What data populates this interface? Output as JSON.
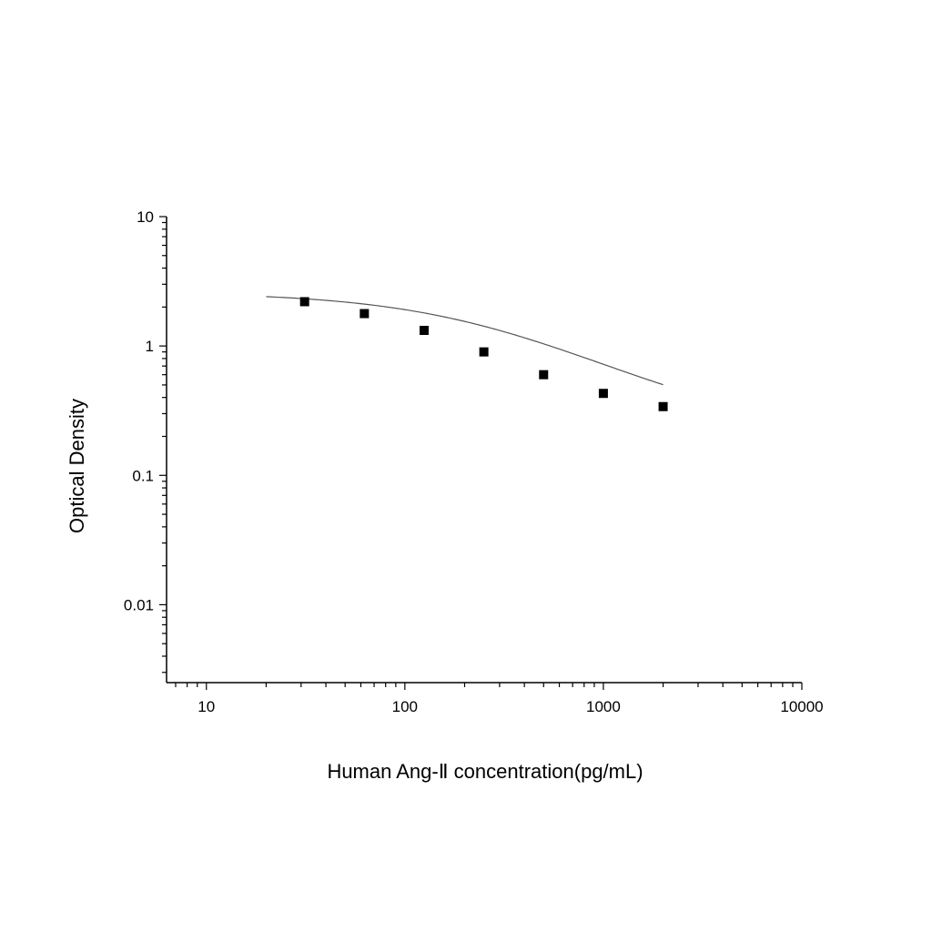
{
  "chart_data": {
    "type": "scatter",
    "xlabel": "Human Ang-Ⅱ concentration(pg/mL)",
    "ylabel": "Optical Density",
    "x_scale": "log",
    "y_scale": "log",
    "xlim": [
      6.3,
      10000
    ],
    "ylim": [
      0.0025,
      10
    ],
    "x_ticks": [
      {
        "value": 10,
        "label": "10"
      },
      {
        "value": 100,
        "label": "100"
      },
      {
        "value": 1000,
        "label": "1000"
      },
      {
        "value": 10000,
        "label": "10000"
      }
    ],
    "y_ticks": [
      {
        "value": 10,
        "label": "10"
      },
      {
        "value": 1,
        "label": "1"
      },
      {
        "value": 0.1,
        "label": "0.1"
      },
      {
        "value": 0.01,
        "label": "0.01"
      }
    ],
    "grid": false,
    "legend": "none",
    "series": [
      {
        "x": [
          31.25,
          62.5,
          125,
          250,
          500,
          1000,
          2000
        ],
        "y": [
          2.2,
          1.78,
          1.32,
          0.9,
          0.6,
          0.43,
          0.34
        ],
        "marker": "square",
        "color": "#000000"
      }
    ],
    "fit_curve": {
      "model": "4PL",
      "x_range": [
        20,
        2000
      ],
      "top": 2.6,
      "bottom": 0.2,
      "ec50": 260,
      "hill": 0.95,
      "color": "#555555"
    }
  }
}
